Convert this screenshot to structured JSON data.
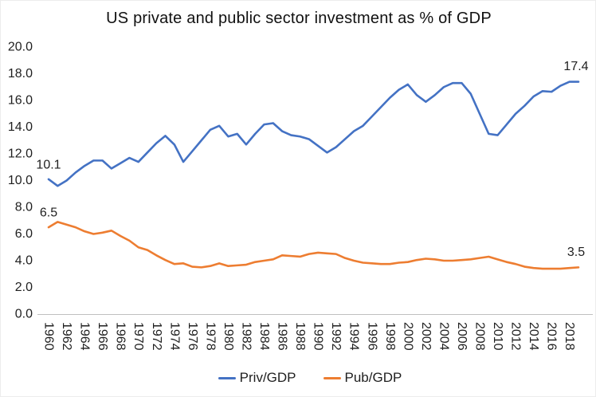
{
  "chart_data": {
    "type": "line",
    "title": "US private and public sector investment as % of GDP",
    "grid": false,
    "legend_position": "bottom",
    "axis_color": "#BFBFBF",
    "text_color": "#1f1f1f",
    "ylim": [
      0,
      20
    ],
    "y_tick_step": 2,
    "y_tick_labels": [
      "0.0",
      "2.0",
      "4.0",
      "6.0",
      "8.0",
      "10.0",
      "12.0",
      "14.0",
      "16.0",
      "18.0",
      "20.0"
    ],
    "x_tick_labels": [
      "1960",
      "1962",
      "1964",
      "1966",
      "1968",
      "1970",
      "1972",
      "1974",
      "1976",
      "1978",
      "1980",
      "1982",
      "1984",
      "1986",
      "1988",
      "1990",
      "1992",
      "1994",
      "1996",
      "1998",
      "2000",
      "2002",
      "2004",
      "2006",
      "2008",
      "2010",
      "2012",
      "2014",
      "2016",
      "2018"
    ],
    "x": [
      1960,
      1961,
      1962,
      1963,
      1964,
      1965,
      1966,
      1967,
      1968,
      1969,
      1970,
      1971,
      1972,
      1973,
      1974,
      1975,
      1976,
      1977,
      1978,
      1979,
      1980,
      1981,
      1982,
      1983,
      1984,
      1985,
      1986,
      1987,
      1988,
      1989,
      1990,
      1991,
      1992,
      1993,
      1994,
      1995,
      1996,
      1997,
      1998,
      1999,
      2000,
      2001,
      2002,
      2003,
      2004,
      2005,
      2006,
      2007,
      2008,
      2009,
      2010,
      2011,
      2012,
      2013,
      2014,
      2015,
      2016,
      2017,
      2018,
      2019
    ],
    "series": [
      {
        "id": "priv-gdp",
        "name": "Priv/GDP",
        "color": "#4472C4",
        "start_label": "10.1",
        "end_label": "17.4",
        "values": [
          10.1,
          9.6,
          10.0,
          10.6,
          11.1,
          11.5,
          11.5,
          10.9,
          11.3,
          11.7,
          11.4,
          12.1,
          12.8,
          13.35,
          12.7,
          11.4,
          12.2,
          13.0,
          13.8,
          14.1,
          13.3,
          13.5,
          12.7,
          13.5,
          14.2,
          14.3,
          13.7,
          13.4,
          13.3,
          13.1,
          12.6,
          12.1,
          12.5,
          13.1,
          13.7,
          14.1,
          14.8,
          15.5,
          16.2,
          16.8,
          17.2,
          16.4,
          15.9,
          16.4,
          17.0,
          17.3,
          17.3,
          16.5,
          15.0,
          13.5,
          13.4,
          14.2,
          15.0,
          15.6,
          16.3,
          16.7,
          16.65,
          17.1,
          17.4,
          17.4
        ]
      },
      {
        "id": "pub-gdp",
        "name": "Pub/GDP",
        "color": "#ED7D31",
        "start_label": "6.5",
        "end_label": "3.5",
        "values": [
          6.5,
          6.9,
          6.7,
          6.5,
          6.2,
          6.0,
          6.1,
          6.25,
          5.85,
          5.5,
          5.0,
          4.8,
          4.4,
          4.05,
          3.75,
          3.8,
          3.55,
          3.5,
          3.6,
          3.8,
          3.6,
          3.65,
          3.7,
          3.9,
          4.0,
          4.1,
          4.4,
          4.35,
          4.3,
          4.5,
          4.6,
          4.55,
          4.5,
          4.2,
          4.0,
          3.85,
          3.8,
          3.75,
          3.75,
          3.85,
          3.9,
          4.05,
          4.15,
          4.1,
          4.0,
          4.0,
          4.05,
          4.1,
          4.2,
          4.3,
          4.1,
          3.9,
          3.75,
          3.55,
          3.45,
          3.4,
          3.4,
          3.4,
          3.45,
          3.5
        ]
      }
    ]
  }
}
